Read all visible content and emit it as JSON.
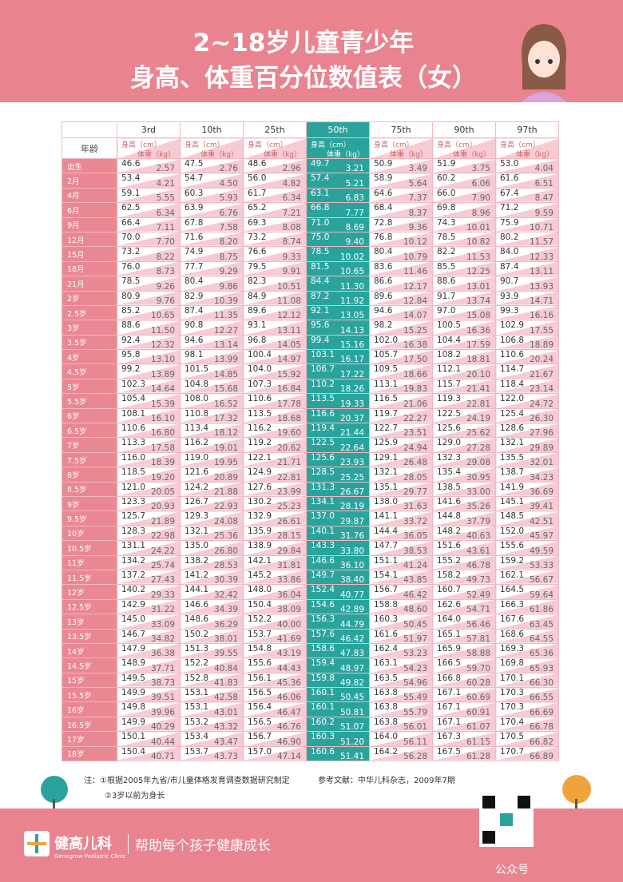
{
  "header": {
    "title_line1": "2~18岁儿童青少年",
    "title_line2": "身高、体重百分位数值表（女）"
  },
  "table": {
    "corner": "年龄",
    "height_label": "身高（cm）",
    "weight_label": "体重（kg）",
    "columns": [
      "3rd",
      "10th",
      "25th",
      "50th",
      "75th",
      "90th",
      "97th"
    ],
    "rows": [
      {
        "age": "出生",
        "values": [
          "46.6",
          "2.57",
          "47.5",
          "2.76",
          "48.6",
          "2.96",
          "49.7",
          "3.21",
          "50.9",
          "3.49",
          "51.9",
          "3.75",
          "53.0",
          "4.04"
        ]
      },
      {
        "age": "2月",
        "values": [
          "53.4",
          "4.21",
          "54.7",
          "4.50",
          "56.0",
          "4.82",
          "57.4",
          "5.21",
          "58.9",
          "5.64",
          "60.2",
          "6.06",
          "61.6",
          "6.51"
        ]
      },
      {
        "age": "4月",
        "values": [
          "59.1",
          "5.55",
          "60.3",
          "5.93",
          "61.7",
          "6.34",
          "63.1",
          "6.83",
          "64.6",
          "7.37",
          "66.0",
          "7.90",
          "67.4",
          "8.47"
        ]
      },
      {
        "age": "6月",
        "values": [
          "62.5",
          "6.34",
          "63.9",
          "6.76",
          "65.2",
          "7.21",
          "66.8",
          "7.77",
          "68.4",
          "8.37",
          "69.8",
          "8.96",
          "71.2",
          "9.59"
        ]
      },
      {
        "age": "9月",
        "values": [
          "66.4",
          "7.11",
          "67.8",
          "7.58",
          "69.3",
          "8.08",
          "71.0",
          "8.69",
          "72.8",
          "9.36",
          "74.3",
          "10.01",
          "75.9",
          "10.71"
        ]
      },
      {
        "age": "12月",
        "values": [
          "70.0",
          "7.70",
          "71.6",
          "8.20",
          "73.2",
          "8.74",
          "75.0",
          "9.40",
          "76.8",
          "10.12",
          "78.5",
          "10.82",
          "80.2",
          "11.57"
        ]
      },
      {
        "age": "15月",
        "values": [
          "73.2",
          "8.22",
          "74.9",
          "8.75",
          "76.6",
          "9.33",
          "78.5",
          "10.02",
          "80.4",
          "10.79",
          "82.2",
          "11.53",
          "84.0",
          "12.33"
        ]
      },
      {
        "age": "18月",
        "values": [
          "76.0",
          "8.73",
          "77.7",
          "9.29",
          "79.5",
          "9.91",
          "81.5",
          "10.65",
          "83.6",
          "11.46",
          "85.5",
          "12.25",
          "87.4",
          "13.11"
        ]
      },
      {
        "age": "21月",
        "values": [
          "78.5",
          "9.26",
          "80.4",
          "9.86",
          "82.3",
          "10.51",
          "84.4",
          "11.30",
          "86.6",
          "12.17",
          "88.6",
          "13.01",
          "90.7",
          "13.93"
        ]
      },
      {
        "age": "2岁",
        "values": [
          "80.9",
          "9.76",
          "82.9",
          "10.39",
          "84.9",
          "11.08",
          "87.2",
          "11.92",
          "89.6",
          "12.84",
          "91.7",
          "13.74",
          "93.9",
          "14.71"
        ]
      },
      {
        "age": "2.5岁",
        "values": [
          "85.2",
          "10.65",
          "87.4",
          "11.35",
          "89.6",
          "12.12",
          "92.1",
          "13.05",
          "94.6",
          "14.07",
          "97.0",
          "15.08",
          "99.3",
          "16.16"
        ]
      },
      {
        "age": "3岁",
        "values": [
          "88.6",
          "11.50",
          "90.8",
          "12.27",
          "93.1",
          "13.11",
          "95.6",
          "14.13",
          "98.2",
          "15.25",
          "100.5",
          "16.36",
          "102.9",
          "17.55"
        ]
      },
      {
        "age": "3.5岁",
        "values": [
          "92.4",
          "12.32",
          "94.6",
          "13.14",
          "96.8",
          "14.05",
          "99.4",
          "15.16",
          "102.0",
          "16.38",
          "104.4",
          "17.59",
          "106.8",
          "18.89"
        ]
      },
      {
        "age": "4岁",
        "values": [
          "95.8",
          "13.10",
          "98.1",
          "13.99",
          "100.4",
          "14.97",
          "103.1",
          "16.17",
          "105.7",
          "17.50",
          "108.2",
          "18.81",
          "110.6",
          "20.24"
        ]
      },
      {
        "age": "4.5岁",
        "values": [
          "99.2",
          "13.89",
          "101.5",
          "14.85",
          "104.0",
          "15.92",
          "106.7",
          "17.22",
          "109.5",
          "18.66",
          "112.1",
          "20.10",
          "114.7",
          "21.67"
        ]
      },
      {
        "age": "5岁",
        "values": [
          "102.3",
          "14.64",
          "104.8",
          "15.68",
          "107.3",
          "16.84",
          "110.2",
          "18.26",
          "113.1",
          "19.83",
          "115.7",
          "21.41",
          "118.4",
          "23.14"
        ]
      },
      {
        "age": "5.5岁",
        "values": [
          "105.4",
          "15.39",
          "108.0",
          "16.52",
          "110.6",
          "17.78",
          "113.5",
          "19.33",
          "116.5",
          "21.06",
          "119.3",
          "22.81",
          "122.0",
          "24.72"
        ]
      },
      {
        "age": "6岁",
        "values": [
          "108.1",
          "16.10",
          "110.8",
          "17.32",
          "113.5",
          "18.68",
          "116.6",
          "20.37",
          "119.7",
          "22.27",
          "122.5",
          "24.19",
          "125.4",
          "26.30"
        ]
      },
      {
        "age": "6.5岁",
        "values": [
          "110.6",
          "16.80",
          "113.4",
          "18.12",
          "116.2",
          "19.60",
          "119.4",
          "21.44",
          "122.7",
          "23.51",
          "125.6",
          "25.62",
          "128.6",
          "27.96"
        ]
      },
      {
        "age": "7岁",
        "values": [
          "113.3",
          "17.58",
          "116.2",
          "19.01",
          "119.2",
          "20.62",
          "122.5",
          "22.64",
          "125.9",
          "24.94",
          "129.0",
          "27.28",
          "132.1",
          "29.89"
        ]
      },
      {
        "age": "7.5岁",
        "values": [
          "116.0",
          "18.39",
          "119.0",
          "19.95",
          "122.1",
          "21.71",
          "125.6",
          "23.93",
          "129.1",
          "26.48",
          "132.3",
          "29.08",
          "135.5",
          "32.01"
        ]
      },
      {
        "age": "8岁",
        "values": [
          "118.5",
          "19.20",
          "121.6",
          "20.89",
          "124.9",
          "22.81",
          "128.5",
          "25.25",
          "132.1",
          "28.05",
          "135.4",
          "30.95",
          "138.7",
          "34.23"
        ]
      },
      {
        "age": "8.5岁",
        "values": [
          "121.0",
          "20.05",
          "124.2",
          "21.88",
          "127.6",
          "23.99",
          "131.3",
          "26.67",
          "135.1",
          "29.77",
          "138.5",
          "33.00",
          "141.9",
          "36.69"
        ]
      },
      {
        "age": "9岁",
        "values": [
          "123.3",
          "20.93",
          "126.7",
          "22.93",
          "130.2",
          "25.23",
          "134.1",
          "28.19",
          "138.0",
          "31.63",
          "141.6",
          "35.26",
          "145.1",
          "39.41"
        ]
      },
      {
        "age": "9.5岁",
        "values": [
          "125.7",
          "21.89",
          "129.3",
          "24.08",
          "132.9",
          "26.61",
          "137.0",
          "29.87",
          "141.1",
          "33.72",
          "144.8",
          "37.79",
          "148.5",
          "42.51"
        ]
      },
      {
        "age": "10岁",
        "values": [
          "128.3",
          "22.98",
          "132.1",
          "25.36",
          "135.9",
          "28.15",
          "140.1",
          "31.76",
          "144.4",
          "36.05",
          "148.2",
          "40.63",
          "152.0",
          "45.97"
        ]
      },
      {
        "age": "10.5岁",
        "values": [
          "131.1",
          "24.22",
          "135.0",
          "26.80",
          "138.9",
          "29.84",
          "143.3",
          "33.80",
          "147.7",
          "38.53",
          "151.6",
          "43.61",
          "155.6",
          "49.59"
        ]
      },
      {
        "age": "11岁",
        "values": [
          "134.2",
          "25.74",
          "138.2",
          "28.53",
          "142.1",
          "31.81",
          "146.6",
          "36.10",
          "151.1",
          "41.24",
          "155.2",
          "46.78",
          "159.2",
          "53.33"
        ]
      },
      {
        "age": "11.5岁",
        "values": [
          "137.2",
          "27.43",
          "141.2",
          "30.39",
          "145.2",
          "33.86",
          "149.7",
          "38.40",
          "154.1",
          "43.85",
          "158.2",
          "49.73",
          "162.1",
          "56.67"
        ]
      },
      {
        "age": "12岁",
        "values": [
          "140.2",
          "29.33",
          "144.1",
          "32.42",
          "148.0",
          "36.04",
          "152.4",
          "40.77",
          "156.7",
          "46.42",
          "160.7",
          "52.49",
          "164.5",
          "59.64"
        ]
      },
      {
        "age": "12.5岁",
        "values": [
          "142.9",
          "31.22",
          "146.6",
          "34.39",
          "150.4",
          "38.09",
          "154.6",
          "42.89",
          "158.8",
          "48.60",
          "162.6",
          "54.71",
          "166.3",
          "61.86"
        ]
      },
      {
        "age": "13岁",
        "values": [
          "145.0",
          "33.09",
          "148.6",
          "36.29",
          "152.2",
          "40.00",
          "156.3",
          "44.79",
          "160.3",
          "50.45",
          "164.0",
          "56.46",
          "167.6",
          "63.45"
        ]
      },
      {
        "age": "13.5岁",
        "values": [
          "146.7",
          "34.82",
          "150.2",
          "38.01",
          "153.7",
          "41.69",
          "157.6",
          "46.42",
          "161.6",
          "51.97",
          "165.1",
          "57.81",
          "168.6",
          "64.55"
        ]
      },
      {
        "age": "14岁",
        "values": [
          "147.9",
          "36.38",
          "151.3",
          "39.55",
          "154.8",
          "43.19",
          "158.6",
          "47.83",
          "162.4",
          "53.23",
          "165.9",
          "58.88",
          "169.3",
          "65.36"
        ]
      },
      {
        "age": "14.5岁",
        "values": [
          "148.9",
          "37.71",
          "152.2",
          "40.84",
          "155.6",
          "44.43",
          "159.4",
          "48.97",
          "163.1",
          "54.23",
          "166.5",
          "59.70",
          "169.8",
          "65.93"
        ]
      },
      {
        "age": "15岁",
        "values": [
          "149.5",
          "38.73",
          "152.8",
          "41.83",
          "156.1",
          "45.36",
          "159.8",
          "49.82",
          "163.5",
          "54.96",
          "166.8",
          "60.28",
          "170.1",
          "66.30"
        ]
      },
      {
        "age": "15.5岁",
        "values": [
          "149.9",
          "39.51",
          "153.1",
          "42.58",
          "156.5",
          "46.06",
          "160.1",
          "50.45",
          "163.8",
          "55.49",
          "167.1",
          "60.69",
          "170.3",
          "66.55"
        ]
      },
      {
        "age": "16岁",
        "values": [
          "149.8",
          "39.96",
          "153.1",
          "43.01",
          "156.4",
          "46.47",
          "160.1",
          "50.81",
          "163.8",
          "55.79",
          "167.1",
          "60.91",
          "170.3",
          "66.69"
        ]
      },
      {
        "age": "16.5岁",
        "values": [
          "149.9",
          "40.29",
          "153.2",
          "43.32",
          "156.5",
          "46.76",
          "160.2",
          "51.07",
          "163.8",
          "56.01",
          "167.1",
          "61.07",
          "170.4",
          "66.78"
        ]
      },
      {
        "age": "17岁",
        "values": [
          "150.1",
          "40.44",
          "153.4",
          "43.47",
          "156.7",
          "46.90",
          "160.3",
          "51.20",
          "164.0",
          "56.11",
          "167.3",
          "61.15",
          "170.5",
          "66.82"
        ]
      },
      {
        "age": "18岁",
        "values": [
          "150.4",
          "40.71",
          "153.7",
          "43.73",
          "157.0",
          "47.14",
          "160.6",
          "51.41",
          "164.2",
          "56.28",
          "167.5",
          "61.28",
          "170.7",
          "66.89"
        ]
      }
    ]
  },
  "notes": {
    "note1": "注：①根据2005年九省/市儿童体格发育调查数据研究制定",
    "reference": "参考文献：中华儿科杂志，2009年7期",
    "note2": "②3岁以前为身长"
  },
  "footer": {
    "brand": "健高儿科",
    "brand_en": "Genegrow Pediatric Clinic",
    "slogan": "帮助每个孩子健康成长",
    "watermark": "公众号"
  }
}
